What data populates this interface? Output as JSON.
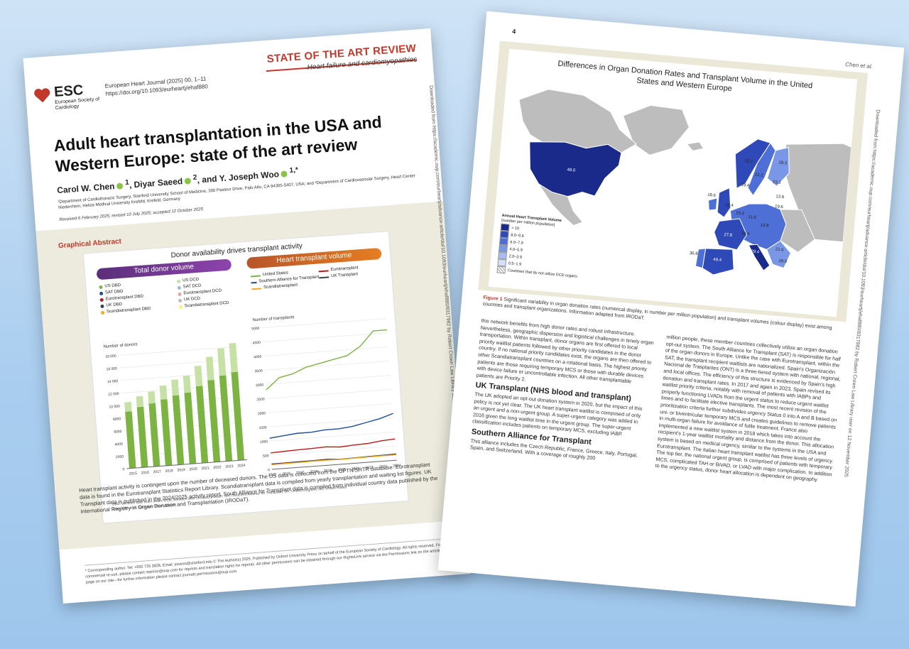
{
  "left_page": {
    "header": {
      "section": "STATE OF THE ART REVIEW",
      "subsection": "Heart failure and cardiomyopathies",
      "logo_name": "ESC",
      "logo_sub": "European Society of Cardiology",
      "journal_line1": "European Heart Journal (2025) 00, 1–11",
      "journal_line2": "https://doi.org/10.1093/eurheartj/ehaf880"
    },
    "title": "Adult heart transplantation in the USA and Western Europe: state of the art review",
    "authors": {
      "a1": "Carol W. Chen",
      "a1_sup": "1",
      "a2": ", Diyar Saeed",
      "a2_sup": "2",
      "a3": ", and Y. Joseph Woo",
      "a3_sup": "1,*"
    },
    "affiliations": "¹Department of Cardiothoracic Surgery, Stanford University School of Medicine, 300 Pasteur Drive, Palo Alto, CA 94305-5407, USA; and ²Department of Cardiovascular Surgery, Heart Center Niederrhein, Helios Medical University Krefeld, Krefeld, Germany",
    "received": "Received 6 February 2025; revised 10 July 2025; accepted 12 October 2025",
    "graphical_abstract": {
      "label": "Graphical Abstract",
      "heading": "Donor availability drives transplant activity",
      "left_panel": "Total donor volume",
      "right_panel": "Heart transplant volume",
      "donor_legend": [
        {
          "label": "US DBD",
          "color": "#7cb342"
        },
        {
          "label": "US DCD",
          "color": "#c5e1a5"
        },
        {
          "label": "SAT DBD",
          "color": "#1e4e9a"
        },
        {
          "label": "SAT DCD",
          "color": "#9fb8e0"
        },
        {
          "label": "Eurotransplant DBD",
          "color": "#b71c1c"
        },
        {
          "label": "Eurotransplant DCD",
          "color": "#e8a3a3"
        },
        {
          "label": "UK DBD",
          "color": "#37474f"
        },
        {
          "label": "UK DCD",
          "color": "#b0bec5"
        },
        {
          "label": "Scandiatransplant DBD",
          "color": "#f9a825"
        },
        {
          "label": "Scandiatransplant DCD",
          "color": "#fff176"
        }
      ],
      "tx_legend": [
        {
          "label": "United States",
          "color": "#7cb342"
        },
        {
          "label": "Eurotransplant",
          "color": "#b71c1c"
        },
        {
          "label": "Southern Alliance for Transplant",
          "color": "#1e4e9a"
        },
        {
          "label": "UK Transplant",
          "color": "#37474f"
        },
        {
          "label": "Scandiatransplant",
          "color": "#f9a825"
        }
      ],
      "donor_axis_label": "Number of donors",
      "tx_axis_label": "Number of transplants",
      "footnote1": "DBD, donation after brain death; DCD, donation after circulatory death; SAT, Southern Alliance for Transplant; UK, United Kingdom; US, United States",
      "footnote2": "Chen CW, et al. European Heart Journal"
    },
    "body_text": "Heart transplant activity is contingent upon the number of deceased donors. The US data is collected from the OPTN/SRTR database. Eurotransplant data is found in the Eurotransplant Statistics Report Library. Scandiatransplant data is compiled from yearly transplantation and waiting list figures. UK Transplant data is published in the 2024/2025 activity report. South Alliance for Transplant data is compiled from individual country data published by the International Registry in Organ Donation and Transplantation (IRODaT).",
    "footer": "* Corresponding author. Tel: +650 725 3828, Email: joswoo@stanford.edu © The Author(s) 2025. Published by Oxford University Press on behalf of the European Society of Cardiology. All rights reserved. For commercial re-use, please contact reprints@oup.com for reprints and translation rights for reprints. All other permissions can be obtained through our RightsLink service via the Permissions link on the article page on our site—for further information please contact journals.permissions@oup.com.",
    "side_note": "Downloaded from https://academic.oup.com/eurheartj/advance-article/doi/10.1093/eurheartj/ehaf880/8317982 by Robert Crown Law Library user on 12 November 2025"
  },
  "chart_data": [
    {
      "type": "bar",
      "title": "Total donor volume",
      "ylabel": "Number of donors",
      "categories": [
        "2015",
        "2016",
        "2017",
        "2018",
        "2019",
        "2020",
        "2021",
        "2022",
        "2023",
        "2024"
      ],
      "ylim": [
        0,
        18000
      ],
      "yticks": [
        "0",
        "2000",
        "4000",
        "6000",
        "8000",
        "10 000",
        "12 000",
        "14 000",
        "16 000",
        "18 000"
      ],
      "series": [
        {
          "name": "US DBD",
          "values": [
            9000,
            9600,
            10000,
            10500,
            11000,
            11300,
            12200,
            13000,
            13600,
            14000
          ]
        },
        {
          "name": "US DCD",
          "values": [
            1500,
            1700,
            1900,
            2200,
            2500,
            2700,
            3200,
            3700,
            4300,
            4600
          ]
        }
      ]
    },
    {
      "type": "line",
      "title": "Heart transplant volume",
      "ylabel": "Number of transplants",
      "x": [
        "2015",
        "2016",
        "2017",
        "2018",
        "2019",
        "2020",
        "2021",
        "2022",
        "2023",
        "2024"
      ],
      "ylim": [
        0,
        5000
      ],
      "yticks": [
        "0",
        "500",
        "1000",
        "1500",
        "2000",
        "2500",
        "3000",
        "3500",
        "4000",
        "4500",
        "5000"
      ],
      "series": [
        {
          "name": "United States",
          "values": [
            2800,
            3200,
            3300,
            3500,
            3600,
            3700,
            3800,
            4100,
            4600,
            4600
          ]
        },
        {
          "name": "Southern Alliance for Transplant",
          "values": [
            1100,
            1150,
            1200,
            1200,
            1250,
            1250,
            1300,
            1400,
            1500,
            1650
          ]
        },
        {
          "name": "Eurotransplant",
          "values": [
            580,
            600,
            620,
            630,
            650,
            610,
            640,
            660,
            720,
            750
          ]
        },
        {
          "name": "UK Transplant",
          "values": [
            190,
            190,
            200,
            200,
            210,
            180,
            190,
            200,
            210,
            220
          ]
        },
        {
          "name": "Scandiatransplant",
          "values": [
            160,
            170,
            170,
            180,
            180,
            170,
            180,
            185,
            190,
            190
          ]
        }
      ]
    }
  ],
  "right_page": {
    "page_number": "4",
    "running_head": "Chen et al.",
    "figure": {
      "title": "Differences in Organ Donation Rates and Transplant Volume in the United States and Western Europe",
      "legend_title": "Annual Heart Transplant Volume",
      "legend_sub": "(number per million population)",
      "legend_items": [
        {
          "label": "> 10",
          "color": "#1a2a8a"
        },
        {
          "label": "8.0–9.9",
          "color": "#2f4ab8"
        },
        {
          "label": "6.0–7.9",
          "color": "#4d6fd6"
        },
        {
          "label": "4.0–5.9",
          "color": "#7a96e6"
        },
        {
          "label": "2.0–3.9",
          "color": "#a9bcf0"
        },
        {
          "label": "0.5–1.9",
          "color": "#d6e0fa"
        },
        {
          "label": "Countries that do not utilize DCD organs",
          "color": "#ffffff"
        }
      ],
      "values": {
        "us": "48.0",
        "norway": "25.2",
        "finland": "28.2",
        "sweden": "22.2",
        "denmark": "23.1",
        "uk": "18.6",
        "ireland": "19.4",
        "netherlands": "22.4",
        "belgium": "15.3",
        "germany": "11.6",
        "poland": "13.9",
        "czech": "19.6",
        "austria": "13.8",
        "france": "27.8",
        "italy": "29.4",
        "switzerland": "19.4",
        "croatia": "21.6",
        "spain": "49.4",
        "portugal": "36.8",
        "greece": "29.0"
      },
      "caption_label": "Figure 1",
      "caption": "Significant variability in organ donation rates (numerical display, in number per million population) and transplant volumes (colour display) exist among countries and transplant organizations. Information adapted from IRODaT."
    },
    "col_a_p1": "this network benefits from high donor rates and robust infrastructure. Nevertheless, geographic dispersion and logistical challenges in timely organ transportation. Within transplant, donor organs are first offered to local priority waitlist patients followed by other priority candidates in the donor country. If no national priority candidates exist, the organs are then offered to other Scandiatransplant countries on a rotational basis. The highest priority patients are those requiring temporary MCS or those with durable devices with device failure or uncontrollable infection. All other transplantable patients are Priority 2.",
    "col_a_h1": "UK Transplant (NHS blood and transplant)",
    "col_a_p2": "The UK adopted an opt-out donation system in 2020, but the impact of this policy is not yet clear. The UK heart transplant waitlist is composed of only an urgent and a non-urgent group. A super-urgent category was added in 2016 given the long waitlist time in the urgent group. The super-urgent classification includes patients on temporary MCS, excluding IABP.",
    "col_a_h2": "Southern Alliance for Transplant",
    "col_a_p3": "This alliance includes the Czech Republic, France, Greece, Italy, Portugal, Spain, and Switzerland. With a coverage of roughly 200",
    "col_b_p1": "million people, these member countries collectively utilize an organ donation opt-out system. The South Alliance for Transplant (SAT) is responsible for half of the organ donors in Europe. Unlike the case with Eurotransplant, within the SAT, the transplant recipient waitlists are nationalized. Spain's Organización Nacional de Trasplantes (ONT) is a three-tiered system with national, regional, and local offices. The efficiency of this structure is evidenced by Spain's high donation and transplant rates. In 2017 and again in 2023, Spain revised its waitlist priority criteria, notably with removal of patients with IABPs and properly functioning LVADs from the urgent status to reduce urgent waitlist times and to facilitate elective transplants. The most recent revision of the prioritization criteria further subdivides urgency Status 0 into A and B based on uni- or biventricular temporary MCS and creates guidelines to remove patients in multi-organ failure for avoidance of futile treatment. France also implemented a new waitlist system in 2018 which takes into account the recipient's 1-year waitlist mortality and distance from the donor. This allocation system is based on medical urgency, similar to the systems in the USA and Eurotransplant. The Italian heart transplant waitlist has three levels of urgency. The top tier, the national urgent group, is comprised of patients with temporary MCS, complicated TAH or BiVAD, or LVAD with major complication. In addition to the urgency status, donor heart allocation is dependent on geography",
    "side_note": "Downloaded from https://academic.oup.com/eurheartj/advance-article/doi/10.1093/eurheartj/ehaf880/8317982 by Robert Crown Law Library user on 12 November 2025"
  }
}
